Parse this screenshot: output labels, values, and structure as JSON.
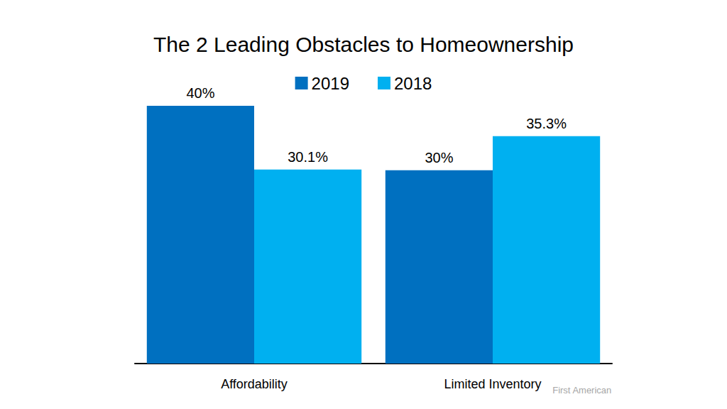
{
  "chart_data": {
    "type": "bar",
    "title": "The 2 Leading Obstacles to Homeownership",
    "categories": [
      "Affordability",
      "Limited Inventory"
    ],
    "series": [
      {
        "name": "2019",
        "color": "#0070C0",
        "values": [
          40,
          30
        ],
        "value_labels": [
          "40%",
          "30%"
        ]
      },
      {
        "name": "2018",
        "color": "#00B0F0",
        "values": [
          30.1,
          35.3
        ],
        "value_labels": [
          "30.1%",
          "35.3%"
        ]
      }
    ],
    "ylim": [
      0,
      40
    ],
    "grid": false,
    "legend": "top",
    "data_labels": true,
    "tick_labels": "x",
    "annotations": [
      "First American"
    ]
  }
}
